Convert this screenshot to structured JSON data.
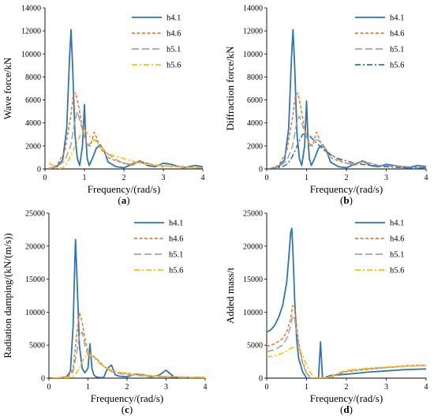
{
  "chart_data": [
    {
      "type": "line",
      "panel_label": "(a)",
      "xlabel": "Frequency/(rad/s)",
      "ylabel": "Wave force/kN",
      "xlim": [
        0,
        4
      ],
      "ylim": [
        0,
        14000
      ],
      "xticks": [
        0,
        1,
        2,
        3,
        4
      ],
      "yticks": [
        0,
        2000,
        4000,
        6000,
        8000,
        10000,
        12000,
        14000
      ],
      "grid": false,
      "legend_position": "top-right",
      "series": [
        {
          "name": "h4.1",
          "color": "#2E75B6",
          "dash": "solid",
          "x": [
            0.1,
            0.3,
            0.45,
            0.55,
            0.62,
            0.66,
            0.7,
            0.76,
            0.82,
            0.88,
            0.95,
            1.0,
            1.03,
            1.07,
            1.12,
            1.2,
            1.3,
            1.4,
            1.5,
            1.6,
            1.8,
            2.0,
            2.2,
            2.4,
            2.6,
            2.8,
            3.0,
            3.2,
            3.5,
            3.8,
            4.0
          ],
          "y": [
            20,
            200,
            800,
            3500,
            9500,
            12100,
            9000,
            3000,
            900,
            300,
            2000,
            5600,
            3000,
            900,
            300,
            900,
            1800,
            2100,
            1600,
            600,
            200,
            100,
            400,
            700,
            300,
            200,
            500,
            400,
            100,
            300,
            200
          ]
        },
        {
          "name": "h4.6",
          "color": "#ED7D31",
          "dash": "short",
          "x": [
            0.1,
            0.3,
            0.5,
            0.65,
            0.72,
            0.78,
            0.85,
            0.95,
            1.05,
            1.15,
            1.25,
            1.3,
            1.4,
            1.6,
            1.8,
            2.0,
            2.2,
            2.4,
            2.6,
            2.8,
            3.0,
            3.2,
            3.5,
            3.8,
            4.0
          ],
          "y": [
            50,
            300,
            1500,
            4500,
            6500,
            6600,
            5500,
            3500,
            2200,
            2000,
            3200,
            2800,
            1800,
            1000,
            700,
            500,
            300,
            700,
            500,
            300,
            200,
            300,
            200,
            100,
            100
          ]
        },
        {
          "name": "h5.1",
          "color": "#A5A5A5",
          "dash": "long",
          "x": [
            0.1,
            0.3,
            0.5,
            0.65,
            0.75,
            0.82,
            0.9,
            1.0,
            1.1,
            1.2,
            1.3,
            1.4,
            1.6,
            1.8,
            2.0,
            2.2,
            2.4,
            2.6,
            2.8,
            3.0,
            3.2,
            3.5,
            3.8,
            4.0
          ],
          "y": [
            20,
            200,
            700,
            2000,
            4000,
            5000,
            4000,
            2800,
            2000,
            2500,
            2500,
            2000,
            1300,
            800,
            500,
            400,
            600,
            500,
            300,
            300,
            200,
            200,
            100,
            100
          ]
        },
        {
          "name": "h5.6",
          "color": "#FFC000",
          "dash": "dashdot",
          "x": [
            0.1,
            0.2,
            0.3,
            0.4,
            0.5,
            0.6,
            0.7,
            0.8,
            0.9,
            1.0,
            1.1,
            1.2,
            1.3,
            1.4,
            1.5,
            1.6,
            1.8,
            2.0,
            2.2,
            2.4,
            2.6,
            2.8,
            3.0,
            3.2,
            3.5,
            3.8,
            4.0
          ],
          "y": [
            500,
            300,
            100,
            50,
            200,
            800,
            1500,
            2200,
            3000,
            3400,
            3000,
            2600,
            2400,
            2000,
            1600,
            1300,
            1100,
            900,
            700,
            500,
            400,
            350,
            300,
            200,
            150,
            100,
            100
          ]
        }
      ]
    },
    {
      "type": "line",
      "panel_label": "(b)",
      "xlabel": "Frequency/(rad/s)",
      "ylabel": "Diffraction force/kN",
      "xlim": [
        0,
        4
      ],
      "ylim": [
        0,
        14000
      ],
      "xticks": [
        0,
        1,
        2,
        3,
        4
      ],
      "yticks": [
        0,
        2000,
        4000,
        6000,
        8000,
        10000,
        12000,
        14000
      ],
      "grid": false,
      "legend_position": "top-right",
      "series": [
        {
          "name": "h4.1",
          "color": "#2E75B6",
          "dash": "solid",
          "x": [
            0.1,
            0.3,
            0.45,
            0.55,
            0.62,
            0.66,
            0.7,
            0.76,
            0.82,
            0.88,
            0.95,
            1.0,
            1.03,
            1.07,
            1.12,
            1.2,
            1.3,
            1.4,
            1.5,
            1.6,
            1.8,
            2.0,
            2.2,
            2.4,
            2.6,
            2.8,
            3.0,
            3.2,
            3.5,
            3.8,
            4.0
          ],
          "y": [
            20,
            200,
            800,
            3500,
            9500,
            12100,
            9000,
            3000,
            900,
            300,
            2000,
            5900,
            3000,
            900,
            300,
            900,
            1800,
            2100,
            1600,
            600,
            200,
            100,
            400,
            700,
            300,
            200,
            400,
            300,
            100,
            300,
            200
          ]
        },
        {
          "name": "h4.6",
          "color": "#ED7D31",
          "dash": "short",
          "x": [
            0.1,
            0.3,
            0.5,
            0.65,
            0.72,
            0.78,
            0.85,
            0.95,
            1.05,
            1.15,
            1.25,
            1.3,
            1.4,
            1.6,
            1.8,
            2.0,
            2.2,
            2.4,
            2.6,
            2.8,
            3.0,
            3.2,
            3.5,
            3.8,
            4.0
          ],
          "y": [
            50,
            300,
            1500,
            4500,
            6400,
            6600,
            5500,
            3500,
            2200,
            2000,
            3200,
            2800,
            1800,
            1000,
            700,
            500,
            300,
            700,
            500,
            300,
            200,
            300,
            200,
            100,
            100
          ]
        },
        {
          "name": "h5.1",
          "color": "#A5A5A5",
          "dash": "long",
          "x": [
            0.1,
            0.3,
            0.5,
            0.65,
            0.75,
            0.82,
            0.9,
            1.0,
            1.1,
            1.2,
            1.3,
            1.4,
            1.6,
            1.8,
            2.0,
            2.2,
            2.4,
            2.6,
            2.8,
            3.0,
            3.2,
            3.5,
            3.8,
            4.0
          ],
          "y": [
            20,
            200,
            700,
            2000,
            4000,
            4600,
            3800,
            2800,
            2000,
            2500,
            2500,
            2000,
            1300,
            800,
            500,
            400,
            600,
            500,
            300,
            300,
            200,
            200,
            100,
            100
          ]
        },
        {
          "name": "h5.6",
          "color": "#2E75B6",
          "dash": "dashdot",
          "x": [
            0.1,
            0.2,
            0.3,
            0.4,
            0.5,
            0.6,
            0.7,
            0.8,
            0.9,
            1.0,
            1.1,
            1.2,
            1.3,
            1.4,
            1.5,
            1.6,
            1.8,
            2.0,
            2.2,
            2.4,
            2.6,
            2.8,
            3.0,
            3.2,
            3.5,
            3.8,
            4.0
          ],
          "y": [
            20,
            50,
            100,
            200,
            400,
            800,
            1500,
            2300,
            3000,
            3100,
            2800,
            2400,
            2100,
            1800,
            1500,
            1200,
            900,
            700,
            500,
            400,
            300,
            250,
            200,
            150,
            100,
            100,
            100
          ]
        }
      ]
    },
    {
      "type": "line",
      "panel_label": "(c)",
      "xlabel": "Frequency/(rad/s)",
      "ylabel": "Radiation damping/(kN/(m/s))",
      "xlim": [
        0,
        4
      ],
      "ylim": [
        0,
        25000
      ],
      "xticks": [
        0,
        1,
        2,
        3,
        4
      ],
      "yticks": [
        0,
        5000,
        10000,
        15000,
        20000,
        25000
      ],
      "grid": false,
      "legend_position": "top-right",
      "series": [
        {
          "name": "h4.1",
          "color": "#2E75B6",
          "dash": "solid",
          "x": [
            0.1,
            0.3,
            0.45,
            0.55,
            0.62,
            0.66,
            0.68,
            0.72,
            0.78,
            0.85,
            0.92,
            1.0,
            1.05,
            1.1,
            1.15,
            1.2,
            1.3,
            1.4,
            1.5,
            1.6,
            1.7,
            1.8,
            2.0,
            2.2,
            2.4,
            2.6,
            2.8,
            3.0,
            3.2,
            3.5,
            3.8,
            4.0
          ],
          "y": [
            0,
            50,
            200,
            1000,
            8000,
            17000,
            21000,
            15000,
            5000,
            1500,
            800,
            1500,
            5200,
            1500,
            500,
            200,
            100,
            100,
            1500,
            2000,
            500,
            300,
            200,
            600,
            500,
            200,
            400,
            1200,
            200,
            100,
            100,
            100
          ]
        },
        {
          "name": "h4.6",
          "color": "#ED7D31",
          "dash": "short",
          "x": [
            0.1,
            0.3,
            0.5,
            0.62,
            0.7,
            0.78,
            0.85,
            0.92,
            1.0,
            1.1,
            1.2,
            1.3,
            1.4,
            1.5,
            1.6,
            1.8,
            2.0,
            2.2,
            2.4,
            2.6,
            2.8,
            3.0,
            3.2,
            3.5,
            3.8,
            4.0
          ],
          "y": [
            0,
            50,
            300,
            1500,
            6000,
            10000,
            8500,
            6000,
            4000,
            3500,
            3000,
            2500,
            1800,
            1500,
            1200,
            900,
            700,
            600,
            500,
            400,
            300,
            250,
            200,
            150,
            100,
            100
          ]
        },
        {
          "name": "h5.1",
          "color": "#A5A5A5",
          "dash": "long",
          "x": [
            0.1,
            0.3,
            0.5,
            0.62,
            0.7,
            0.78,
            0.85,
            0.92,
            1.0,
            1.1,
            1.2,
            1.3,
            1.4,
            1.5,
            1.6,
            1.8,
            2.0,
            2.2,
            2.4,
            2.6,
            2.8,
            3.0,
            3.2,
            3.5,
            3.8,
            4.0
          ],
          "y": [
            0,
            30,
            200,
            1000,
            3500,
            6500,
            7000,
            5000,
            3500,
            3500,
            3000,
            2500,
            1800,
            1400,
            1000,
            700,
            500,
            400,
            350,
            300,
            250,
            200,
            150,
            100,
            100,
            100
          ]
        },
        {
          "name": "h5.6",
          "color": "#FFC000",
          "dash": "dashdot",
          "x": [
            0.1,
            0.3,
            0.5,
            0.62,
            0.7,
            0.78,
            0.85,
            0.92,
            1.0,
            1.1,
            1.2,
            1.3,
            1.4,
            1.5,
            1.6,
            1.8,
            2.0,
            2.2,
            2.4,
            2.6,
            2.8,
            3.0,
            3.2,
            3.5,
            3.8,
            4.0
          ],
          "y": [
            0,
            10,
            100,
            300,
            800,
            1500,
            2500,
            3200,
            3600,
            3300,
            2800,
            2200,
            1800,
            1500,
            1200,
            900,
            700,
            500,
            400,
            350,
            300,
            250,
            200,
            150,
            100,
            100
          ]
        }
      ]
    },
    {
      "type": "line",
      "panel_label": "(d)",
      "xlabel": "Frequency/(rad/s)",
      "ylabel": "Added mass/t",
      "xlim": [
        0,
        4
      ],
      "ylim": [
        0,
        25000
      ],
      "xticks": [
        0,
        1,
        2,
        3,
        4
      ],
      "yticks": [
        0,
        5000,
        10000,
        15000,
        20000,
        25000
      ],
      "grid": false,
      "legend_position": "top-right",
      "series": [
        {
          "name": "h4.1",
          "color": "#2E75B6",
          "dash": "solid",
          "x": [
            0,
            0.1,
            0.2,
            0.3,
            0.4,
            0.5,
            0.55,
            0.6,
            0.63,
            0.66,
            0.7,
            0.75,
            0.8,
            0.9,
            1.0,
            1.1,
            1.2,
            1.3,
            1.35,
            1.4,
            1.45,
            1.5,
            1.6,
            1.8,
            2.0,
            2.2,
            2.5,
            3.0,
            3.5,
            4.0
          ],
          "y": [
            7000,
            7300,
            8000,
            9200,
            11000,
            14500,
            18000,
            22000,
            22700,
            19000,
            12000,
            6000,
            3000,
            1000,
            0,
            -500,
            -200,
            -400,
            5500,
            -200,
            0,
            200,
            400,
            500,
            600,
            700,
            900,
            1100,
            1300,
            1400
          ]
        },
        {
          "name": "h4.6",
          "color": "#ED7D31",
          "dash": "short",
          "x": [
            0,
            0.2,
            0.4,
            0.5,
            0.6,
            0.65,
            0.7,
            0.75,
            0.8,
            0.9,
            1.0,
            1.1,
            1.2,
            1.4,
            1.6,
            1.8,
            2.0,
            2.5,
            3.0,
            3.5,
            4.0
          ],
          "y": [
            4800,
            5200,
            6000,
            7000,
            9000,
            11000,
            10500,
            8000,
            5500,
            2500,
            800,
            0,
            -300,
            -200,
            0,
            600,
            1000,
            1300,
            1600,
            1900,
            2000
          ]
        },
        {
          "name": "h5.1",
          "color": "#A5A5A5",
          "dash": "long",
          "x": [
            0,
            0.2,
            0.4,
            0.5,
            0.6,
            0.65,
            0.7,
            0.75,
            0.8,
            0.9,
            1.0,
            1.1,
            1.2,
            1.4,
            1.6,
            1.8,
            2.0,
            2.5,
            3.0,
            3.5,
            4.0
          ],
          "y": [
            4000,
            4300,
            5000,
            6000,
            7800,
            9500,
            9000,
            7000,
            5000,
            2200,
            700,
            0,
            -200,
            -100,
            200,
            700,
            1100,
            1400,
            1600,
            1800,
            1900
          ]
        },
        {
          "name": "h5.6",
          "color": "#FFC000",
          "dash": "dashdot",
          "x": [
            0,
            0.2,
            0.4,
            0.5,
            0.6,
            0.7,
            0.8,
            0.9,
            1.0,
            1.1,
            1.2,
            1.4,
            1.6,
            1.8,
            2.0,
            2.5,
            3.0,
            3.5,
            4.0
          ],
          "y": [
            3200,
            3400,
            3800,
            4100,
            4500,
            4800,
            4500,
            3500,
            2000,
            800,
            0,
            -200,
            200,
            800,
            1200,
            1500,
            1700,
            1800,
            1900
          ]
        }
      ]
    }
  ]
}
